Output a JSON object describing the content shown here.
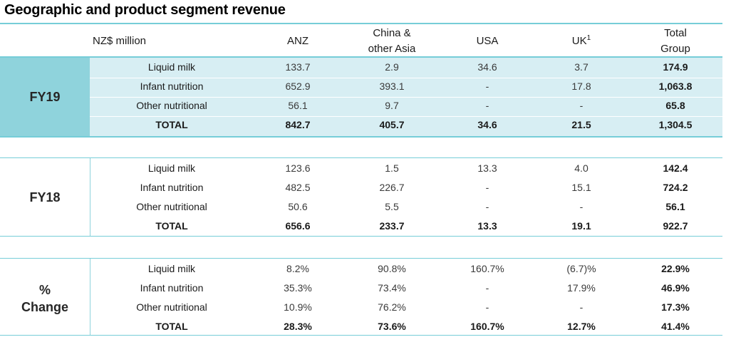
{
  "title": "Geographic and product segment revenue",
  "header": {
    "unit_label": "NZ$ million",
    "columns": [
      {
        "line1": "ANZ",
        "line2": ""
      },
      {
        "line1": "China &",
        "line2": "other Asia"
      },
      {
        "line1": "USA",
        "line2": ""
      },
      {
        "line1": "UK",
        "line2": "",
        "sup": "1"
      },
      {
        "line1": "Total",
        "line2": "Group"
      }
    ]
  },
  "sections": [
    {
      "label_line1": "FY19",
      "label_line2": "",
      "rows": [
        {
          "label": "Liquid milk",
          "values": [
            "133.7",
            "2.9",
            "34.6",
            "3.7",
            "174.9"
          ]
        },
        {
          "label": "Infant nutrition",
          "values": [
            "652.9",
            "393.1",
            "-",
            "17.8",
            "1,063.8"
          ]
        },
        {
          "label": "Other nutritional",
          "values": [
            "56.1",
            "9.7",
            "-",
            "-",
            "65.8"
          ]
        },
        {
          "label": "TOTAL",
          "values": [
            "842.7",
            "405.7",
            "34.6",
            "21.5",
            "1,304.5"
          ]
        }
      ]
    },
    {
      "label_line1": "FY18",
      "label_line2": "",
      "rows": [
        {
          "label": "Liquid milk",
          "values": [
            "123.6",
            "1.5",
            "13.3",
            "4.0",
            "142.4"
          ]
        },
        {
          "label": "Infant nutrition",
          "values": [
            "482.5",
            "226.7",
            "-",
            "15.1",
            "724.2"
          ]
        },
        {
          "label": "Other nutritional",
          "values": [
            "50.6",
            "5.5",
            "-",
            "-",
            "56.1"
          ]
        },
        {
          "label": "TOTAL",
          "values": [
            "656.6",
            "233.7",
            "13.3",
            "19.1",
            "922.7"
          ]
        }
      ]
    },
    {
      "label_line1": "%",
      "label_line2": "Change",
      "rows": [
        {
          "label": "Liquid milk",
          "values": [
            "8.2%",
            "90.8%",
            "160.7%",
            "(6.7)%",
            "22.9%"
          ]
        },
        {
          "label": "Infant nutrition",
          "values": [
            "35.3%",
            "73.4%",
            "-",
            "17.9%",
            "46.9%"
          ]
        },
        {
          "label": "Other nutritional",
          "values": [
            "10.9%",
            "76.2%",
            "-",
            "-",
            "17.3%"
          ]
        },
        {
          "label": "TOTAL",
          "values": [
            "28.3%",
            "73.6%",
            "160.7%",
            "12.7%",
            "41.4%"
          ]
        }
      ]
    }
  ],
  "colors": {
    "accent": "#76cdd8",
    "fy19_label_bg": "#8fd3dc",
    "fy19_rows_bg": "#d7eef3"
  }
}
